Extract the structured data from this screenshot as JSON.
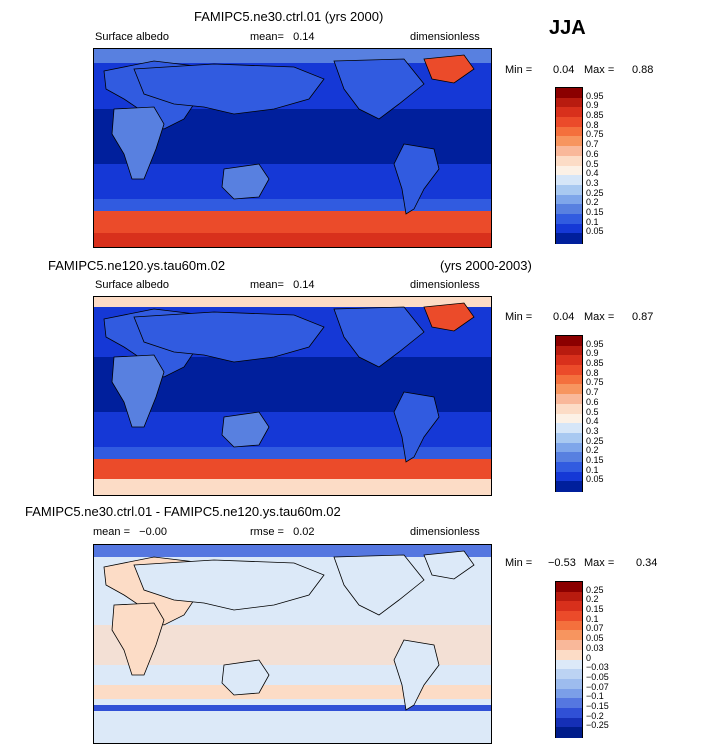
{
  "season": "JJA",
  "panels": [
    {
      "title": "FAMIPC5.ne30.ctrl.01 (yrs 2000)",
      "title_right": "",
      "left_label": "Surface albedo",
      "mean_text": "mean=   0.14",
      "right_label": "dimensionless",
      "minmax": {
        "min_label": "Min =",
        "min": "0.04",
        "max_label": "Max =",
        "max": "0.88"
      },
      "colorbar": {
        "labels": [
          "0.95",
          "0.9",
          "0.85",
          "0.8",
          "0.75",
          "0.7",
          "0.6",
          "0.5",
          "0.4",
          "0.3",
          "0.25",
          "0.2",
          "0.15",
          "0.1",
          "0.05"
        ],
        "colors": [
          "#8b0000",
          "#b81b0f",
          "#d8301c",
          "#eb4b2a",
          "#f4703d",
          "#f7955f",
          "#f9b89a",
          "#fcdcc6",
          "#fcf1e6",
          "#d6e6f8",
          "#a9c9f1",
          "#7fa6ea",
          "#5880e0",
          "#315be0",
          "#1538d6",
          "#001f9c"
        ]
      }
    },
    {
      "title": "FAMIPC5.ne120.ys.tau60m.02",
      "title_right": "(yrs 2000-2003)",
      "left_label": "Surface albedo",
      "mean_text": "mean=   0.14",
      "right_label": "dimensionless",
      "minmax": {
        "min_label": "Min =",
        "min": "0.04",
        "max_label": "Max =",
        "max": "0.87"
      },
      "colorbar": {
        "labels": [
          "0.95",
          "0.9",
          "0.85",
          "0.8",
          "0.75",
          "0.7",
          "0.6",
          "0.5",
          "0.4",
          "0.3",
          "0.25",
          "0.2",
          "0.15",
          "0.1",
          "0.05"
        ],
        "colors": [
          "#8b0000",
          "#b81b0f",
          "#d8301c",
          "#eb4b2a",
          "#f4703d",
          "#f7955f",
          "#f9b89a",
          "#fcdcc6",
          "#fcf1e6",
          "#d6e6f8",
          "#a9c9f1",
          "#7fa6ea",
          "#5880e0",
          "#315be0",
          "#1538d6",
          "#001f9c"
        ]
      }
    },
    {
      "title": "FAMIPC5.ne30.ctrl.01 - FAMIPC5.ne120.ys.tau60m.02",
      "title_right": "",
      "left_label": "mean =   −0.00",
      "mean_text": "rmse =   0.02",
      "right_label": "dimensionless",
      "minmax": {
        "min_label": "Min =",
        "min": "−0.53",
        "max_label": "Max =",
        "max": "0.34"
      },
      "colorbar": {
        "labels": [
          "0.25",
          "0.2",
          "0.15",
          "0.1",
          "0.07",
          "0.05",
          "0.03",
          "0",
          "−0.03",
          "−0.05",
          "−0.07",
          "−0.1",
          "−0.15",
          "−0.2",
          "−0.25"
        ],
        "colors": [
          "#8b0000",
          "#b81b0f",
          "#d8301c",
          "#eb4b2a",
          "#f4703d",
          "#f7955f",
          "#f9b89a",
          "#fcdcc6",
          "#dce9f8",
          "#bcd3f3",
          "#9dbcee",
          "#7b9fe8",
          "#5577e0",
          "#3050d6",
          "#152fb6",
          "#001c8a"
        ]
      }
    }
  ]
}
